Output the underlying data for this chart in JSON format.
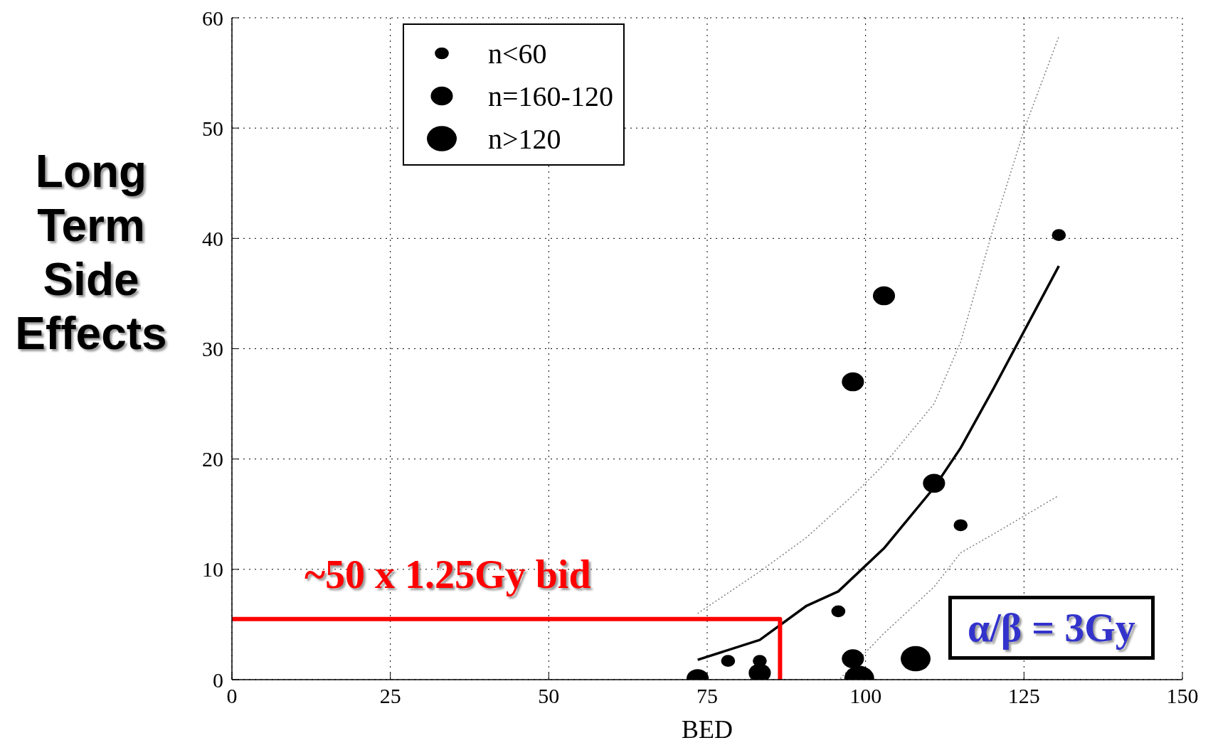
{
  "chart_data": {
    "type": "bubble",
    "xlabel": "BED",
    "ylabel": "Long Term Side Effects",
    "xlim": [
      0,
      150
    ],
    "xticks": [
      0,
      25,
      50,
      75,
      100,
      125,
      150
    ],
    "ylim": [
      0,
      60
    ],
    "yticks": [
      0,
      10,
      20,
      30,
      40,
      50,
      60
    ],
    "grid": true,
    "legend": "top left",
    "annotations": [
      "~50 x 1.25Gy bid",
      "α/β = 3Gy"
    ],
    "series": [
      {
        "name": "n<60",
        "color": "#000000",
        "x": [
          78.3,
          83.3,
          95.7,
          115.0,
          130.5
        ],
        "values": [
          1.7,
          1.7,
          6.2,
          14.0,
          40.3
        ],
        "sizes": [
          0.22,
          0.22,
          0.22,
          0.22,
          0.22
        ]
      },
      {
        "name": "n=160-120",
        "color": "#000000",
        "x": [
          73.5,
          83.3,
          98.0,
          98.0,
          102.9,
          110.8
        ],
        "values": [
          0.1,
          0.6,
          1.9,
          27.0,
          34.8,
          17.8
        ],
        "sizes": [
          0.55,
          0.55,
          0.55,
          0.55,
          0.55,
          0.55
        ]
      },
      {
        "name": "n>120",
        "color": "#000000",
        "x": [
          99.0,
          107.9
        ],
        "values": [
          0.1,
          1.9
        ],
        "sizes": [
          1,
          1
        ]
      },
      {
        "type": "line",
        "color": "#000000",
        "line_style": "solid",
        "x": [
          73.5,
          83.3,
          90.7,
          95.7,
          102.9,
          110.8,
          115.0,
          120.2,
          130.5
        ],
        "values": [
          1.8,
          3.6,
          6.7,
          8.0,
          11.9,
          17.4,
          21.0,
          26.4,
          37.5
        ]
      },
      {
        "type": "line",
        "color": "#808080",
        "line_style": "dotted",
        "x": [
          73.5,
          83.3,
          90.7,
          98.0,
          102.9,
          110.8,
          115.0,
          120.2,
          125.1,
          130.5
        ],
        "values": [
          6.0,
          9.8,
          12.9,
          16.7,
          19.5,
          25.0,
          30.6,
          41.0,
          50.0,
          58.3
        ]
      },
      {
        "type": "line",
        "color": "#808080",
        "line_style": "dotted",
        "x": [
          96.0,
          102.9,
          110.8,
          115.0,
          120.2,
          130.5
        ],
        "values": [
          0.1,
          4.2,
          8.4,
          11.5,
          13.2,
          16.7
        ]
      },
      {
        "type": "line",
        "color": "#ff0000",
        "line_style": "solid",
        "x": [
          0,
          86.5,
          86.5
        ],
        "values": [
          5.5,
          5.5,
          0
        ]
      }
    ]
  }
}
